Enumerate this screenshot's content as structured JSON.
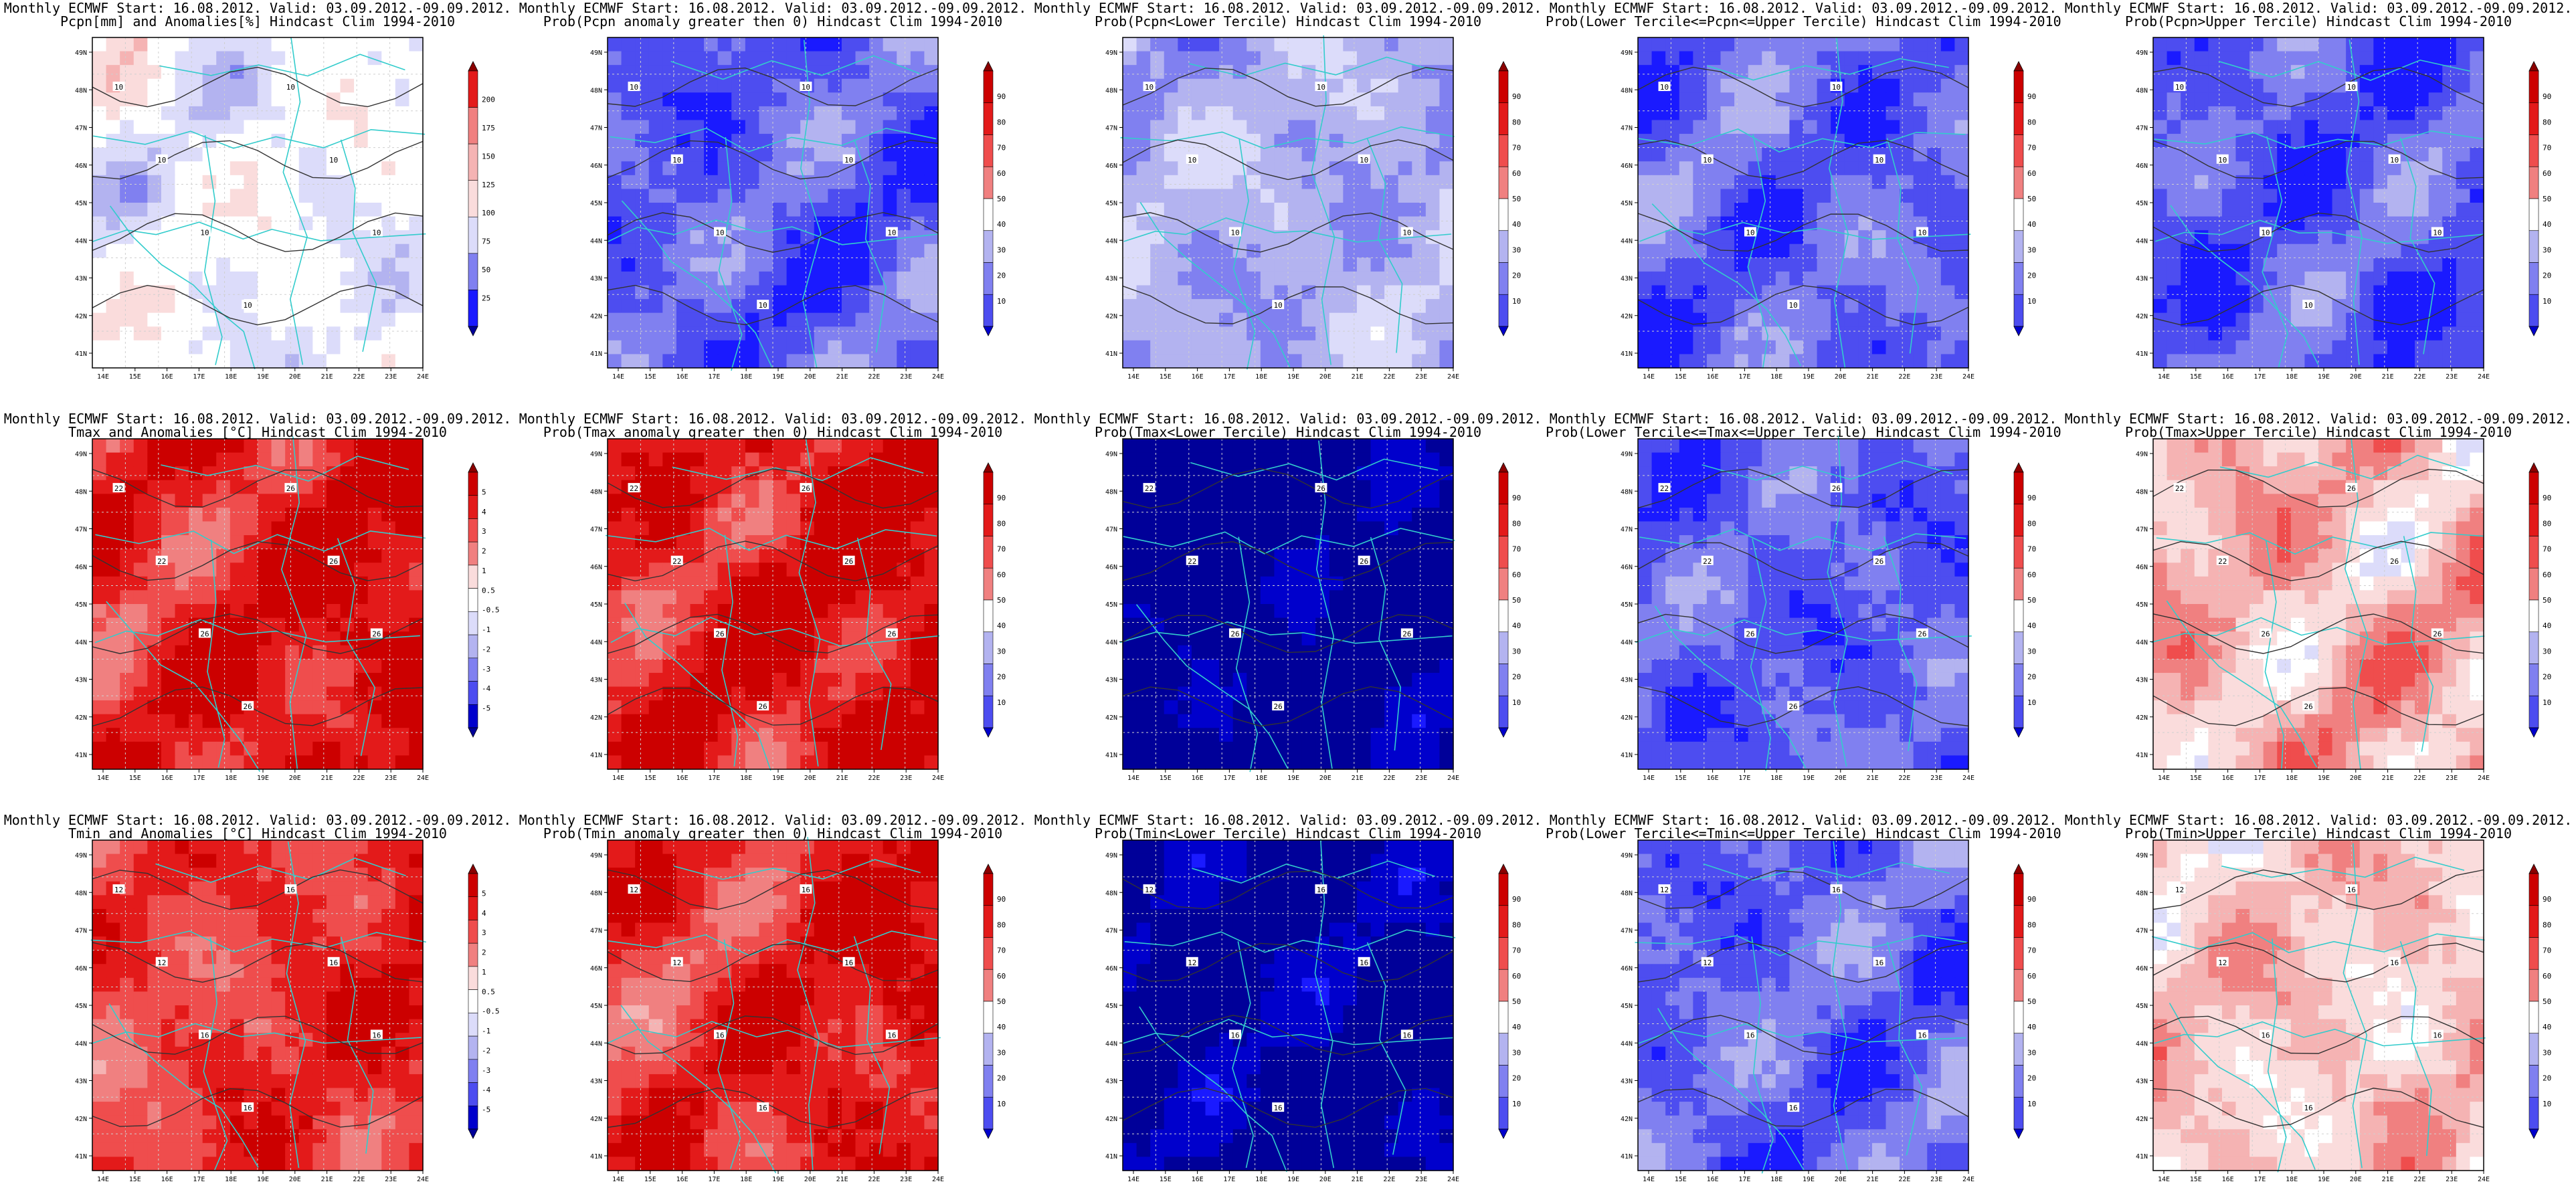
{
  "page": {
    "background": "#ffffff"
  },
  "palette": {
    "blue_ramp": [
      "#000099",
      "#0000cc",
      "#1a1aff",
      "#4d4df0",
      "#8080f0",
      "#b3b3f0",
      "#dcdcfa",
      "#ffffff"
    ],
    "red_ramp": [
      "#ffffff",
      "#fadcdc",
      "#f5b3b3",
      "#f08080",
      "#ef4d4d",
      "#e31a1a",
      "#cc0000",
      "#8b0000"
    ],
    "contour": "#333333",
    "border": "#33cccc",
    "grid": "#cfcfcf"
  },
  "axes": {
    "lon_ticks": [
      "14E",
      "15E",
      "16E",
      "17E",
      "18E",
      "19E",
      "20E",
      "21E",
      "22E",
      "23E",
      "24E"
    ],
    "lat_ticks": [
      "49N",
      "48N",
      "47N",
      "46N",
      "45N",
      "44N",
      "43N",
      "42N",
      "41N"
    ]
  },
  "colorbars": {
    "pcpn": [
      "200",
      "175",
      "150",
      "125",
      "100",
      "75",
      "50",
      "25"
    ],
    "temp": [
      "5",
      "4",
      "3",
      "2",
      "1",
      "0.5",
      "-0.5",
      "-1",
      "-2",
      "-3",
      "-4",
      "-5"
    ],
    "prob": [
      "90",
      "80",
      "70",
      "60",
      "50",
      "40",
      "30",
      "20",
      "10"
    ]
  },
  "chart_data": [
    {
      "type": "heatmap",
      "title": [
        "Monthly ECMWF Start: 16.08.2012. Valid: 03.09.2012.-09.09.2012.",
        "Pcpn[mm] and Anomalies[%] Hindcast Clim 1994-2010"
      ],
      "colorbar": "pcpn",
      "base": 0.42,
      "field": "mixed",
      "contour_labels": [
        "10",
        "10",
        "10",
        "10",
        "10",
        "10",
        "10"
      ]
    },
    {
      "type": "heatmap",
      "title": [
        "Monthly ECMWF Start: 16.08.2012. Valid: 03.09.2012.-09.09.2012.",
        "Prob(Pcpn anomaly greater then 0) Hindcast Clim 1994-2010"
      ],
      "colorbar": "prob",
      "base": 0.3,
      "field": "blue",
      "contour_labels": [
        "10",
        "10",
        "10",
        "10",
        "10",
        "10",
        "10"
      ]
    },
    {
      "type": "heatmap",
      "title": [
        "Monthly ECMWF Start: 16.08.2012. Valid: 03.09.2012.-09.09.2012.",
        "Prob(Pcpn<Lower Tercile) Hindcast Clim 1994-2010"
      ],
      "colorbar": "prob",
      "base": 0.4,
      "field": "blue-light",
      "contour_labels": [
        "10",
        "10",
        "10",
        "10",
        "10",
        "10",
        "10"
      ]
    },
    {
      "type": "heatmap",
      "title": [
        "Monthly ECMWF Start: 16.08.2012. Valid: 03.09.2012.-09.09.2012.",
        "Prob(Lower Tercile<=Pcpn<=Upper Tercile) Hindcast Clim 1994-2010"
      ],
      "colorbar": "prob",
      "base": 0.32,
      "field": "blue",
      "contour_labels": [
        "10",
        "10",
        "10",
        "10",
        "10",
        "10",
        "10"
      ]
    },
    {
      "type": "heatmap",
      "title": [
        "Monthly ECMWF Start: 16.08.2012. Valid: 03.09.2012.-09.09.2012.",
        "Prob(Pcpn>Upper Tercile) Hindcast Clim 1994-2010"
      ],
      "colorbar": "prob",
      "base": 0.28,
      "field": "blue",
      "contour_labels": [
        "10",
        "10",
        "10",
        "10",
        "10",
        "10",
        "10"
      ]
    },
    {
      "type": "heatmap",
      "title": [
        "Monthly ECMWF Start: 16.08.2012. Valid: 03.09.2012.-09.09.2012.",
        "Tmax and Anomalies [°C] Hindcast Clim 1994-2010"
      ],
      "colorbar": "temp",
      "base": 0.78,
      "field": "red",
      "contour_labels": [
        "22",
        "22",
        "26",
        "26",
        "26",
        "26",
        "26"
      ]
    },
    {
      "type": "heatmap",
      "title": [
        "Monthly ECMWF Start: 16.08.2012. Valid: 03.09.2012.-09.09.2012.",
        "Prob(Tmax anomaly greater then 0) Hindcast Clim 1994-2010"
      ],
      "colorbar": "prob",
      "base": 0.8,
      "field": "red",
      "contour_labels": [
        "22",
        "22",
        "26",
        "26",
        "26",
        "26",
        "26"
      ]
    },
    {
      "type": "heatmap",
      "title": [
        "Monthly ECMWF Start: 16.08.2012. Valid: 03.09.2012.-09.09.2012.",
        "Prob(Tmax<Lower Tercile) Hindcast Clim 1994-2010"
      ],
      "colorbar": "prob",
      "base": 0.08,
      "field": "blue-dark",
      "contour_labels": [
        "22",
        "22",
        "26",
        "26",
        "26",
        "26",
        "26"
      ]
    },
    {
      "type": "heatmap",
      "title": [
        "Monthly ECMWF Start: 16.08.2012. Valid: 03.09.2012.-09.09.2012.",
        "Prob(Lower Tercile<=Tmax<=Upper Tercile) Hindcast Clim 1994-2010"
      ],
      "colorbar": "prob",
      "base": 0.3,
      "field": "blue",
      "contour_labels": [
        "22",
        "22",
        "26",
        "26",
        "26",
        "26",
        "26"
      ]
    },
    {
      "type": "heatmap",
      "title": [
        "Monthly ECMWF Start: 16.08.2012. Valid: 03.09.2012.-09.09.2012.",
        "Prob(Tmax>Upper Tercile) Hindcast Clim 1994-2010"
      ],
      "colorbar": "prob",
      "base": 0.6,
      "field": "red-light",
      "contour_labels": [
        "22",
        "22",
        "26",
        "26",
        "26",
        "26",
        "26"
      ]
    },
    {
      "type": "heatmap",
      "title": [
        "Monthly ECMWF Start: 16.08.2012. Valid: 03.09.2012.-09.09.2012.",
        "Tmin and Anomalies [°C] Hindcast Clim 1994-2010"
      ],
      "colorbar": "temp",
      "base": 0.7,
      "field": "red",
      "contour_labels": [
        "12",
        "12",
        "16",
        "16",
        "16",
        "16",
        "16"
      ]
    },
    {
      "type": "heatmap",
      "title": [
        "Monthly ECMWF Start: 16.08.2012. Valid: 03.09.2012.-09.09.2012.",
        "Prob(Tmin anomaly greater then 0) Hindcast Clim 1994-2010"
      ],
      "colorbar": "prob",
      "base": 0.75,
      "field": "red",
      "contour_labels": [
        "12",
        "12",
        "16",
        "16",
        "16",
        "16",
        "16"
      ]
    },
    {
      "type": "heatmap",
      "title": [
        "Monthly ECMWF Start: 16.08.2012. Valid: 03.09.2012.-09.09.2012.",
        "Prob(Tmin<Lower Tercile) Hindcast Clim 1994-2010"
      ],
      "colorbar": "prob",
      "base": 0.12,
      "field": "blue-dark",
      "contour_labels": [
        "12",
        "12",
        "16",
        "16",
        "16",
        "16",
        "16"
      ]
    },
    {
      "type": "heatmap",
      "title": [
        "Monthly ECMWF Start: 16.08.2012. Valid: 03.09.2012.-09.09.2012.",
        "Prob(Lower Tercile<=Tmin<=Upper Tercile) Hindcast Clim 1994-2010"
      ],
      "colorbar": "prob",
      "base": 0.32,
      "field": "blue",
      "contour_labels": [
        "12",
        "12",
        "16",
        "16",
        "16",
        "16",
        "16"
      ]
    },
    {
      "type": "heatmap",
      "title": [
        "Monthly ECMWF Start: 16.08.2012. Valid: 03.09.2012.-09.09.2012.",
        "Prob(Tmin>Upper Tercile) Hindcast Clim 1994-2010"
      ],
      "colorbar": "prob",
      "base": 0.55,
      "field": "red-light",
      "contour_labels": [
        "12",
        "12",
        "16",
        "16",
        "16",
        "16",
        "16"
      ]
    }
  ]
}
